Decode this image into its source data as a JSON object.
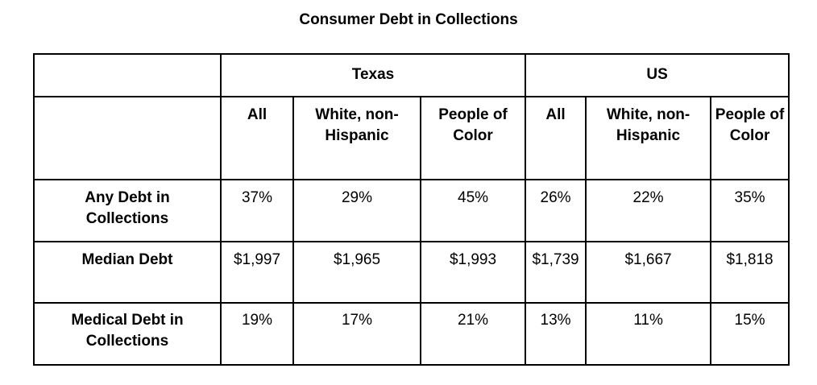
{
  "title": "Consumer Debt in Collections",
  "groups": [
    {
      "label": "Texas"
    },
    {
      "label": "US"
    }
  ],
  "columns": [
    "All",
    "White, non-Hispanic",
    "People of Color",
    "All",
    "White, non-Hispanic",
    "People of Color"
  ],
  "rows": [
    {
      "label": "Any Debt in Collections",
      "values": [
        "37%",
        "29%",
        "45%",
        "26%",
        "22%",
        "35%"
      ]
    },
    {
      "label": "Median Debt",
      "values": [
        "$1,997",
        "$1,965",
        "$1,993",
        "$1,739",
        "$1,667",
        "$1,818"
      ]
    },
    {
      "label": "Medical Debt in Collections",
      "values": [
        "19%",
        "17%",
        "21%",
        "13%",
        "11%",
        "15%"
      ]
    }
  ]
}
